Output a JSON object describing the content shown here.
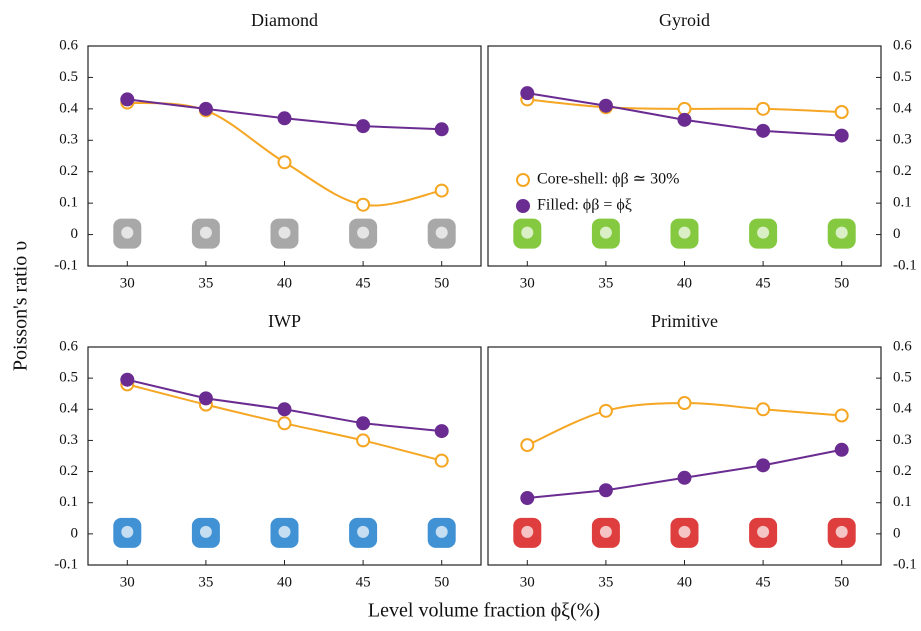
{
  "figure_labels": {
    "y_label": "Poisson's ratio υ",
    "x_label": "Level volume fraction ϕξ(%)"
  },
  "chart_data": [
    {
      "type": "line",
      "title": "Diamond",
      "x": [
        30,
        35,
        40,
        45,
        50
      ],
      "xlim": [
        27.5,
        52.5
      ],
      "xticks": [
        30,
        35,
        40,
        45,
        50
      ],
      "ylim": [
        -0.1,
        0.6
      ],
      "yticks": [
        -0.1,
        0,
        0.1,
        0.2,
        0.3,
        0.4,
        0.5,
        0.6
      ],
      "yaxis_side": "left",
      "series": [
        {
          "color": "#f5a623",
          "marker": "open",
          "smooth": true,
          "values": [
            0.42,
            0.395,
            0.23,
            0.095,
            0.14
          ]
        },
        {
          "color": "#6a2c91",
          "marker": "filled",
          "smooth": false,
          "values": [
            0.43,
            0.4,
            0.37,
            0.345,
            0.335
          ]
        }
      ]
    },
    {
      "type": "line",
      "title": "Gyroid",
      "x": [
        30,
        35,
        40,
        45,
        50
      ],
      "xlim": [
        27.5,
        52.5
      ],
      "xticks": [
        30,
        35,
        40,
        45,
        50
      ],
      "ylim": [
        -0.1,
        0.6
      ],
      "yticks": [
        -0.1,
        0,
        0.1,
        0.2,
        0.3,
        0.4,
        0.5,
        0.6
      ],
      "yaxis_side": "right",
      "legend": "center",
      "series": [
        {
          "name": "Core-shell: ϕβ ≃ 30%",
          "color": "#f5a623",
          "marker": "open",
          "smooth": true,
          "values": [
            0.43,
            0.405,
            0.4,
            0.4,
            0.39
          ]
        },
        {
          "name": "Filled: ϕβ = ϕξ",
          "color": "#6a2c91",
          "marker": "filled",
          "smooth": false,
          "values": [
            0.45,
            0.41,
            0.365,
            0.33,
            0.315
          ]
        }
      ]
    },
    {
      "type": "line",
      "title": "IWP",
      "x": [
        30,
        35,
        40,
        45,
        50
      ],
      "xlim": [
        27.5,
        52.5
      ],
      "xticks": [
        30,
        35,
        40,
        45,
        50
      ],
      "ylim": [
        -0.1,
        0.6
      ],
      "yticks": [
        -0.1,
        0,
        0.1,
        0.2,
        0.3,
        0.4,
        0.5,
        0.6
      ],
      "yaxis_side": "left",
      "series": [
        {
          "color": "#f5a623",
          "marker": "open",
          "smooth": true,
          "values": [
            0.48,
            0.415,
            0.355,
            0.3,
            0.235
          ]
        },
        {
          "color": "#6a2c91",
          "marker": "filled",
          "smooth": false,
          "values": [
            0.495,
            0.435,
            0.4,
            0.355,
            0.33
          ]
        }
      ]
    },
    {
      "type": "line",
      "title": "Primitive",
      "x": [
        30,
        35,
        40,
        45,
        50
      ],
      "xlim": [
        27.5,
        52.5
      ],
      "xticks": [
        30,
        35,
        40,
        45,
        50
      ],
      "ylim": [
        -0.1,
        0.6
      ],
      "yticks": [
        -0.1,
        0,
        0.1,
        0.2,
        0.3,
        0.4,
        0.5,
        0.6
      ],
      "yaxis_side": "right",
      "series": [
        {
          "color": "#f5a623",
          "marker": "open",
          "smooth": true,
          "values": [
            0.285,
            0.395,
            0.42,
            0.4,
            0.38
          ]
        },
        {
          "color": "#6a2c91",
          "marker": "filled",
          "smooth": false,
          "values": [
            0.115,
            0.14,
            0.18,
            0.22,
            0.27
          ]
        }
      ]
    }
  ]
}
